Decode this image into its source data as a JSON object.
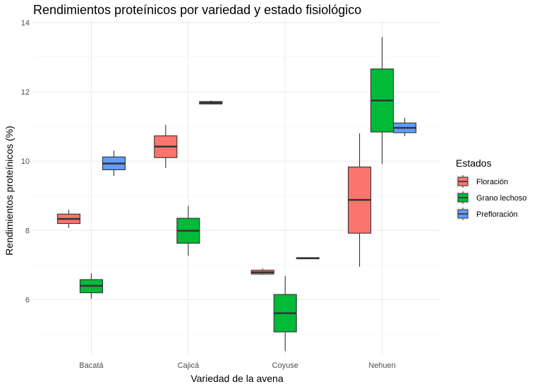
{
  "chart_data": {
    "type": "boxplot",
    "title": "Rendimientos proteínicos por variedad y estado fisiológico",
    "xlabel": "Variedad de la avena",
    "ylabel": "Rendimientos proteínicos (%)",
    "categories": [
      "Bacatá",
      "Cajicá",
      "Coyuse",
      "Nehuen"
    ],
    "ylim": [
      4.4,
      14.1
    ],
    "yticks": [
      6,
      8,
      10,
      12,
      14
    ],
    "grid": true,
    "legend": {
      "title": "Estados",
      "position": "right"
    },
    "series": [
      {
        "name": "Floración",
        "color": "#F8766D",
        "boxes": [
          {
            "min": 8.07,
            "q1": 8.2,
            "median": 8.33,
            "q3": 8.47,
            "max": 8.6
          },
          {
            "min": 9.8,
            "q1": 10.1,
            "median": 10.42,
            "q3": 10.73,
            "max": 11.05
          },
          {
            "min": 6.72,
            "q1": 6.74,
            "median": 6.79,
            "q3": 6.85,
            "max": 6.9
          },
          {
            "min": 6.95,
            "q1": 7.92,
            "median": 8.88,
            "q3": 9.83,
            "max": 10.8
          }
        ]
      },
      {
        "name": "Grano lechoso",
        "color": "#00BA38",
        "boxes": [
          {
            "min": 6.03,
            "q1": 6.2,
            "median": 6.4,
            "q3": 6.58,
            "max": 6.76
          },
          {
            "min": 7.27,
            "q1": 7.63,
            "median": 7.99,
            "q3": 8.35,
            "max": 8.71
          },
          {
            "min": 4.52,
            "q1": 5.07,
            "median": 5.61,
            "q3": 6.15,
            "max": 6.68
          },
          {
            "min": 9.92,
            "q1": 10.84,
            "median": 11.75,
            "q3": 12.66,
            "max": 13.58
          }
        ]
      },
      {
        "name": "Prefloración",
        "color": "#619CFF",
        "boxes": [
          {
            "min": 9.57,
            "q1": 9.75,
            "median": 9.93,
            "q3": 10.12,
            "max": 10.3
          },
          {
            "min": 11.63,
            "q1": 11.65,
            "median": 11.68,
            "q3": 11.72,
            "max": 11.75
          },
          {
            "min": 7.17,
            "q1": 7.18,
            "median": 7.2,
            "q3": 7.21,
            "max": 7.22
          },
          {
            "min": 10.72,
            "q1": 10.82,
            "median": 10.96,
            "q3": 11.1,
            "max": 11.25
          }
        ]
      }
    ]
  }
}
